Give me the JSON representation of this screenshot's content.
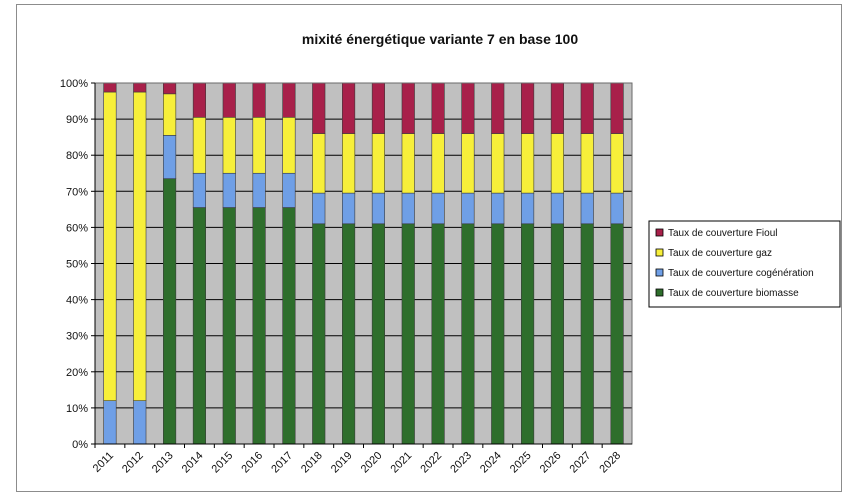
{
  "chart_data": {
    "type": "bar",
    "stacked": true,
    "title": "mixité énergétique variante 7 en base 100",
    "xlabel": "",
    "ylabel": "",
    "ylim": [
      0,
      100
    ],
    "yticks": [
      "0%",
      "10%",
      "20%",
      "30%",
      "40%",
      "50%",
      "60%",
      "70%",
      "80%",
      "90%",
      "100%"
    ],
    "grid": true,
    "legend_position": "right",
    "categories": [
      "2011",
      "2012",
      "2013",
      "2014",
      "2015",
      "2016",
      "2017",
      "2018",
      "2019",
      "2020",
      "2021",
      "2022",
      "2023",
      "2024",
      "2025",
      "2026",
      "2027",
      "2028"
    ],
    "series": [
      {
        "name": "Taux de couverture biomasse",
        "color": "#2e6e2c",
        "values": [
          0,
          0,
          73.5,
          65.5,
          65.5,
          65.5,
          65.5,
          61,
          61,
          61,
          61,
          61,
          61,
          61,
          61,
          61,
          61,
          61
        ]
      },
      {
        "name": "Taux de couverture cogénération",
        "color": "#6f9fe6",
        "values": [
          12,
          12,
          12,
          9.5,
          9.5,
          9.5,
          9.5,
          8.5,
          8.5,
          8.5,
          8.5,
          8.5,
          8.5,
          8.5,
          8.5,
          8.5,
          8.5,
          8.5
        ]
      },
      {
        "name": "Taux de couverture gaz",
        "color": "#f7ef3a",
        "values": [
          85.5,
          85.5,
          11.5,
          15.5,
          15.5,
          15.5,
          15.5,
          16.5,
          16.5,
          16.5,
          16.5,
          16.5,
          16.5,
          16.5,
          16.5,
          16.5,
          16.5,
          16.5
        ]
      },
      {
        "name": "Taux de couverture Fioul",
        "color": "#a8204a",
        "values": [
          2.5,
          2.5,
          3,
          9.5,
          9.5,
          9.5,
          9.5,
          14,
          14,
          14,
          14,
          14,
          14,
          14,
          14,
          14,
          14,
          14
        ]
      }
    ],
    "legend_order": [
      "Taux de couverture Fioul",
      "Taux de couverture gaz",
      "Taux de couverture cogénération",
      "Taux de couverture biomasse"
    ],
    "plot_background": "#c0c0c0",
    "gridline_color": "#000000"
  }
}
